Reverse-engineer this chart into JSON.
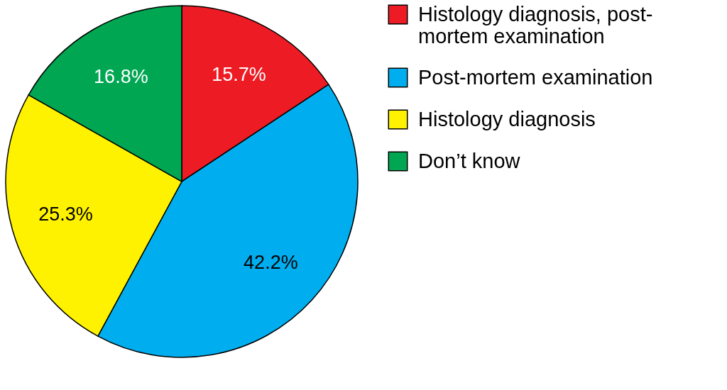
{
  "chart_data": {
    "type": "pie",
    "categories": [
      "Histology diagnosis, post-mortem examination",
      "Post-mortem examination",
      "Histology diagnosis",
      "Don’t know"
    ],
    "values": [
      15.7,
      42.2,
      25.3,
      16.8
    ],
    "colors": [
      "#ed1c24",
      "#00aeef",
      "#fff200",
      "#00a651"
    ],
    "value_labels": [
      "15.7%",
      "42.2%",
      "25.3%",
      "16.8%"
    ],
    "legend": "right"
  }
}
